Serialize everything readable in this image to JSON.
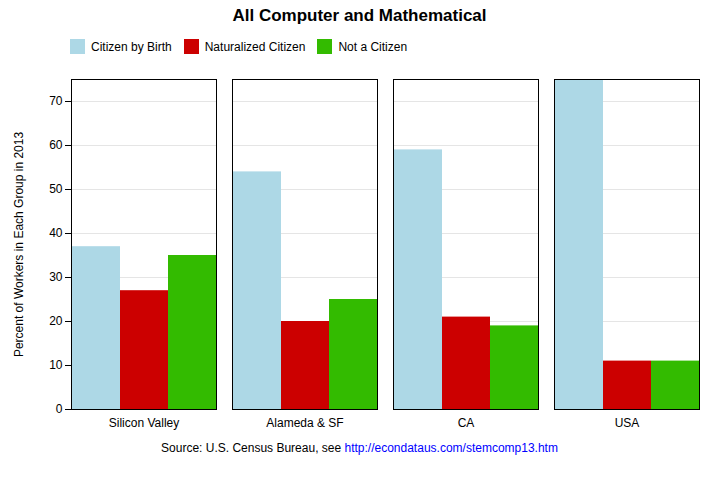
{
  "chart_data": {
    "type": "bar",
    "title": "All Computer and Mathematical",
    "ylabel": "Percent of Workers in Each Group in 2013",
    "categories": [
      "Silicon Valley",
      "Alameda & SF",
      "CA",
      "USA"
    ],
    "series": [
      {
        "name": "Citizen by Birth",
        "color": "#add8e6",
        "values": [
          37,
          54,
          59,
          75
        ]
      },
      {
        "name": "Naturalized Citizen",
        "color": "#cc0000",
        "values": [
          27,
          20,
          21,
          11
        ]
      },
      {
        "name": "Not a Citizen",
        "color": "#33bb00",
        "values": [
          35,
          25,
          19,
          11
        ]
      }
    ],
    "ylim": [
      0,
      75
    ],
    "yticks": [
      0,
      10,
      20,
      30,
      40,
      50,
      60,
      70
    ],
    "grid": true,
    "legend": "upper left",
    "annotations": [
      "Source: U.S. Census Bureau, see ",
      "http://econdataus.com/stemcomp13.htm"
    ]
  }
}
